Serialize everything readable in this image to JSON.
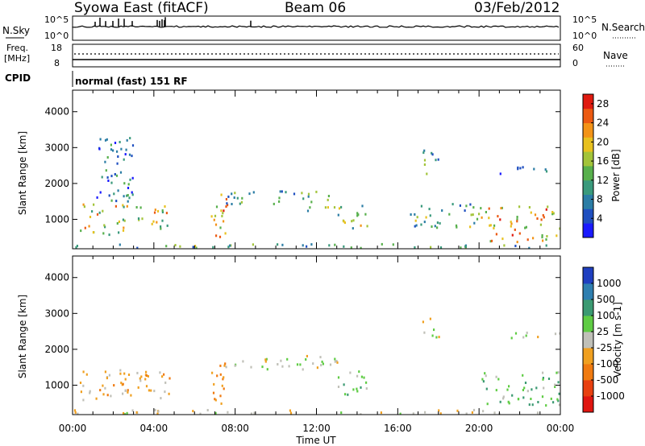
{
  "header": {
    "station": "Syowa East (fitACF)",
    "beam": "Beam 06",
    "date": "03/Feb/2012"
  },
  "summary_panels": {
    "nsky_label": "N.Sky",
    "nsearch_label": "N.Search",
    "nsky_ticks": [
      "10^5",
      "10^0"
    ],
    "nsearch_ticks": [
      "10^5",
      "10^0"
    ],
    "freq_label_lines": [
      "Freq.",
      "[MHz]"
    ],
    "freq_ticks": [
      "18",
      "8"
    ],
    "nave_label": "Nave",
    "nave_ticks": [
      "60",
      "0"
    ],
    "cpid_label": "CPID",
    "cpid_text": "normal (fast) 151 RF"
  },
  "chart_data": [
    {
      "type": "heatmap",
      "name": "power",
      "title": "",
      "xlabel": "Time UT",
      "ylabel": "Slant Range [km]",
      "xlim": [
        0,
        24
      ],
      "ylim": [
        180,
        4600
      ],
      "x_ticks": [
        "00:00",
        "04:00",
        "08:00",
        "12:00",
        "16:00",
        "20:00",
        "00:00"
      ],
      "y_ticks": [
        "1000",
        "2000",
        "3000",
        "4000"
      ],
      "colorbar": {
        "label": "Power [dB]",
        "ticks": [
          "28",
          "24",
          "20",
          "16",
          "12",
          "8",
          "4"
        ],
        "range": [
          0,
          30
        ],
        "colors": [
          "#1a1aff",
          "#1f4fc0",
          "#2b7da5",
          "#3a9a7c",
          "#58b04c",
          "#a3c43a",
          "#e8c11f",
          "#f39317",
          "#ec5a12",
          "#e01a10"
        ]
      },
      "scatter_regions": [
        {
          "t": [
            0.0,
            24.0
          ],
          "r": [
            220,
            340
          ],
          "level": 0.35
        },
        {
          "t": [
            0.3,
            4.8
          ],
          "r": [
            600,
            1450
          ],
          "level": 0.6
        },
        {
          "t": [
            1.0,
            3.0
          ],
          "r": [
            1500,
            3300
          ],
          "level": 0.2
        },
        {
          "t": [
            6.8,
            7.6
          ],
          "r": [
            500,
            1800
          ],
          "level": 0.7
        },
        {
          "t": [
            7.5,
            11.5
          ],
          "r": [
            1450,
            1850
          ],
          "level": 0.35
        },
        {
          "t": [
            11.5,
            13.3
          ],
          "r": [
            1200,
            1800
          ],
          "level": 0.45
        },
        {
          "t": [
            13.0,
            14.5
          ],
          "r": [
            700,
            1450
          ],
          "level": 0.5
        },
        {
          "t": [
            17.2,
            18.0
          ],
          "r": [
            2300,
            3000
          ],
          "level": 0.3
        },
        {
          "t": [
            16.5,
            20.0
          ],
          "r": [
            800,
            1500
          ],
          "level": 0.4
        },
        {
          "t": [
            19.8,
            24.0
          ],
          "r": [
            400,
            1400
          ],
          "level": 0.7
        },
        {
          "t": [
            21.0,
            24.0
          ],
          "r": [
            2300,
            2500
          ],
          "level": 0.2
        }
      ]
    },
    {
      "type": "heatmap",
      "name": "velocity",
      "title": "",
      "xlabel": "Time UT",
      "ylabel": "Slant Range [km]",
      "xlim": [
        0,
        24
      ],
      "ylim": [
        180,
        4600
      ],
      "x_ticks": [
        "00:00",
        "04:00",
        "08:00",
        "12:00",
        "16:00",
        "20:00",
        "00:00"
      ],
      "y_ticks": [
        "1000",
        "2000",
        "3000",
        "4000"
      ],
      "colorbar": {
        "label": "Velocity [m s-1]",
        "ticks": [
          "1000",
          "500",
          "100",
          "25",
          "-25",
          "-100",
          "-500",
          "-1000"
        ],
        "range": [
          -1000,
          1000
        ],
        "colors": [
          "#1f3fc0",
          "#2f7fb0",
          "#3b9a72",
          "#5fcc44",
          "#c0c0b8",
          "#f0a020",
          "#f07a10",
          "#e84010",
          "#e01510"
        ]
      },
      "scatter_regions": [
        {
          "t": [
            0.0,
            24.0
          ],
          "r": [
            220,
            340
          ],
          "v": -60
        },
        {
          "t": [
            0.3,
            4.8
          ],
          "r": [
            600,
            1450
          ],
          "v": -180
        },
        {
          "t": [
            6.8,
            7.6
          ],
          "r": [
            500,
            1800
          ],
          "v": -400
        },
        {
          "t": [
            7.5,
            13.0
          ],
          "r": [
            1450,
            1850
          ],
          "v": 0
        },
        {
          "t": [
            13.0,
            14.5
          ],
          "r": [
            700,
            1450
          ],
          "v": 200
        },
        {
          "t": [
            17.2,
            18.0
          ],
          "r": [
            2300,
            3000
          ],
          "v": 0
        },
        {
          "t": [
            19.8,
            24.0
          ],
          "r": [
            400,
            1400
          ],
          "v": 300
        },
        {
          "t": [
            21.0,
            24.0
          ],
          "r": [
            2300,
            2500
          ],
          "v": 0
        }
      ]
    }
  ]
}
